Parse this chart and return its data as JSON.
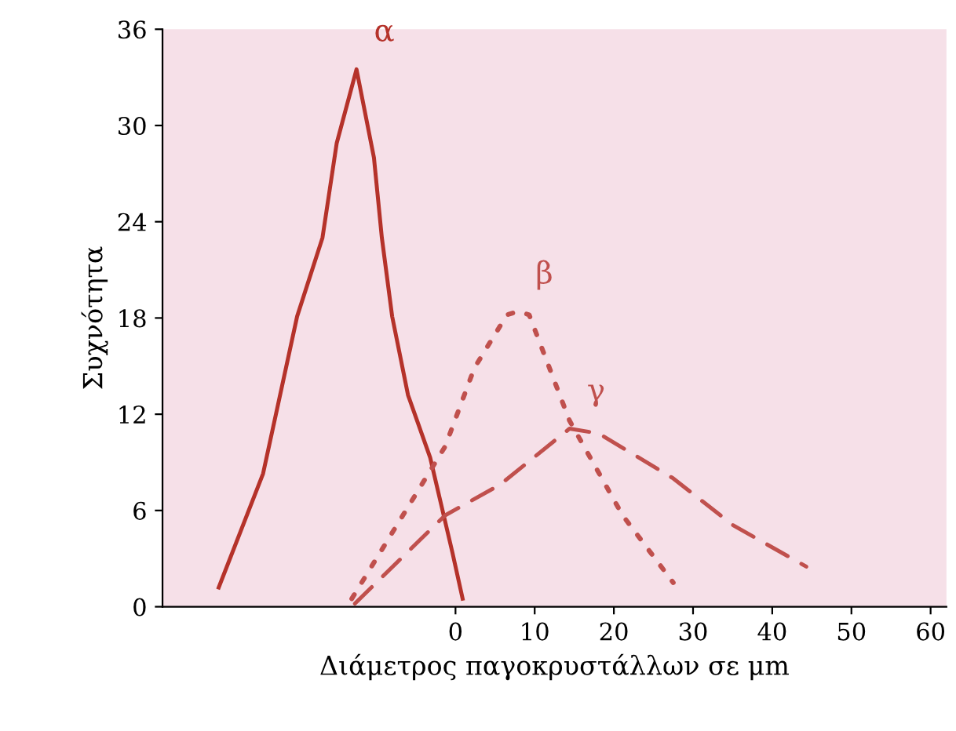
{
  "chart_data": {
    "type": "line",
    "xlabel": "Διάμετρος παγοκρυστάλλων σε μm",
    "ylabel": "Συχνότητα",
    "xlim": [
      -37,
      62
    ],
    "ylim": [
      0,
      36
    ],
    "xticks": [
      0,
      10,
      20,
      30,
      40,
      50,
      60
    ],
    "yticks": [
      0,
      6,
      12,
      18,
      24,
      30,
      36
    ],
    "grid": false,
    "legend": false,
    "series": [
      {
        "name": "α",
        "color": "#b5322a",
        "line_style": "solid",
        "x": [
          -29.9,
          -24.3,
          -20.0,
          -16.8,
          -15.0,
          -12.5,
          -10.3,
          -9.3,
          -8.0,
          -6.0,
          -3.2,
          -0.4,
          0.9
        ],
        "values": [
          1.2,
          8.3,
          18.1,
          23.0,
          28.9,
          33.5,
          28.0,
          23.0,
          18.1,
          13.2,
          9.3,
          3.4,
          0.5
        ]
      },
      {
        "name": "β",
        "color": "#c0504d",
        "line_style": "dotted",
        "x": [
          -13.1,
          -1.3,
          2.4,
          6.5,
          7.9,
          9.3,
          14.4,
          21.1,
          27.5
        ],
        "values": [
          0.5,
          10.0,
          14.9,
          18.2,
          18.4,
          18.2,
          11.6,
          5.7,
          1.5
        ]
      },
      {
        "name": "γ",
        "color": "#c0504d",
        "line_style": "dashed",
        "x": [
          -12.7,
          -1.3,
          5.6,
          14.4,
          18.1,
          27.5,
          35.0,
          44.3
        ],
        "values": [
          0.2,
          5.7,
          7.6,
          11.1,
          10.8,
          8.0,
          5.1,
          2.5
        ]
      }
    ]
  }
}
